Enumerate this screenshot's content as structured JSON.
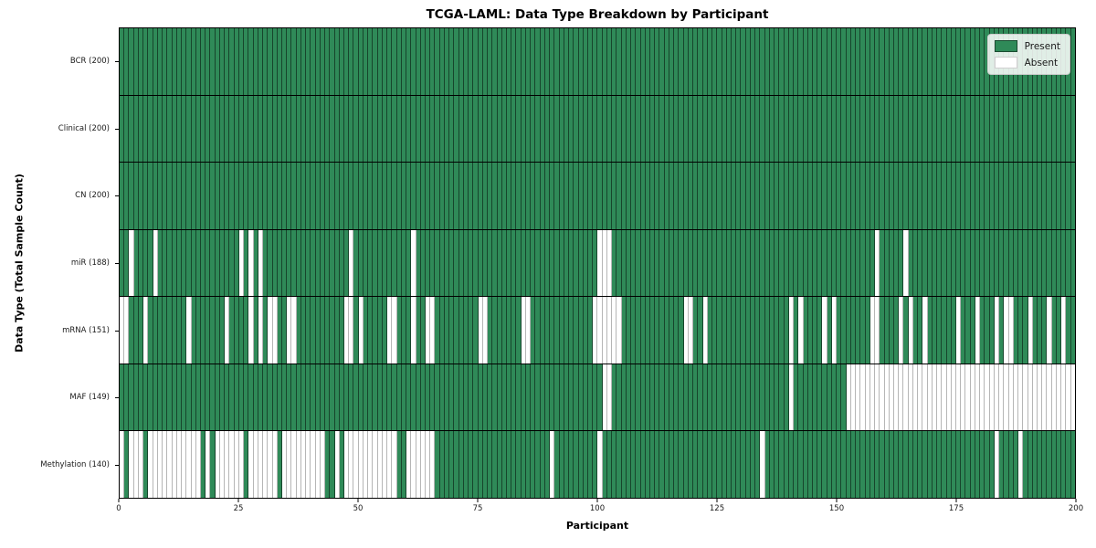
{
  "chart_data": {
    "type": "heatmap",
    "title": "TCGA-LAML: Data Type Breakdown by Participant",
    "xlabel": "Participant",
    "ylabel": "Data Type (Total Sample Count)",
    "n_participants": 200,
    "x_ticks": [
      0,
      25,
      50,
      75,
      100,
      125,
      150,
      175,
      200
    ],
    "grid": false,
    "legend": {
      "position": "upper right",
      "entries": [
        {
          "label": "Present",
          "color": "#2f8a58"
        },
        {
          "label": "Absent",
          "color": "#ffffff"
        }
      ]
    },
    "colors": {
      "present": "#2f8a58",
      "absent": "#ffffff",
      "present_edge": "rgba(0,0,0,0.5)",
      "absent_edge": "#b6b6b6",
      "row_divider": "#000000"
    },
    "rows": [
      {
        "label": "BCR",
        "tick_label": "BCR (200)",
        "present_count": 200,
        "absent": []
      },
      {
        "label": "Clinical",
        "tick_label": "Clinical (200)",
        "present_count": 200,
        "absent": []
      },
      {
        "label": "CN",
        "tick_label": "CN (200)",
        "present_count": 200,
        "absent": []
      },
      {
        "label": "miR",
        "tick_label": "miR (188)",
        "present_count": 188,
        "absent": [
          2,
          7,
          25,
          27,
          29,
          48,
          61,
          100,
          101,
          102,
          158,
          164
        ]
      },
      {
        "label": "mRNA",
        "tick_label": "mRNA (151)",
        "present_count": 151,
        "absent": [
          0,
          1,
          5,
          14,
          22,
          27,
          29,
          31,
          32,
          35,
          36,
          47,
          48,
          50,
          56,
          57,
          61,
          64,
          65,
          75,
          76,
          84,
          85,
          99,
          100,
          101,
          102,
          103,
          104,
          118,
          119,
          122,
          140,
          142,
          147,
          149,
          157,
          158,
          163,
          165,
          168,
          175,
          179,
          183,
          185,
          186,
          190,
          194,
          197
        ]
      },
      {
        "label": "MAF",
        "tick_label": "MAF (149)",
        "present_count": 149,
        "absent": [
          101,
          102,
          140,
          152,
          153,
          154,
          155,
          156,
          157,
          158,
          159,
          160,
          161,
          162,
          163,
          164,
          165,
          166,
          167,
          168,
          169,
          170,
          171,
          172,
          173,
          174,
          175,
          176,
          177,
          178,
          179,
          180,
          181,
          182,
          183,
          184,
          185,
          186,
          187,
          188,
          189,
          190,
          191,
          192,
          193,
          194,
          195,
          196,
          197,
          198,
          199
        ]
      },
      {
        "label": "Methylation",
        "tick_label": "Methylation (140)",
        "present_count": 140,
        "absent": [
          0,
          2,
          3,
          4,
          6,
          7,
          8,
          9,
          10,
          11,
          12,
          13,
          14,
          15,
          16,
          18,
          20,
          21,
          22,
          23,
          24,
          25,
          27,
          28,
          29,
          30,
          31,
          32,
          34,
          35,
          36,
          37,
          38,
          39,
          40,
          41,
          42,
          45,
          47,
          48,
          49,
          50,
          51,
          52,
          53,
          54,
          55,
          56,
          57,
          60,
          61,
          62,
          63,
          64,
          65,
          90,
          100,
          134,
          183,
          188
        ]
      }
    ]
  }
}
